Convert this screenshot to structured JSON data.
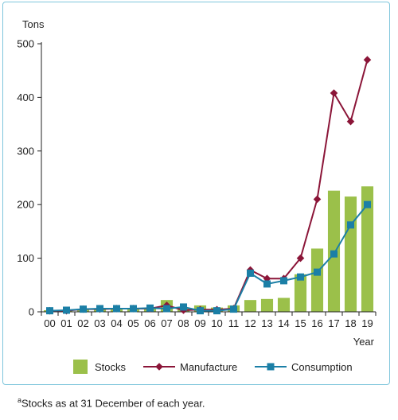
{
  "chart_data": {
    "type": "bar",
    "y_unit": "Tons",
    "xlabel": "Year",
    "ylim": [
      0,
      500
    ],
    "yticks": [
      0,
      100,
      200,
      300,
      400,
      500
    ],
    "categories": [
      "00",
      "01",
      "02",
      "03",
      "04",
      "05",
      "06",
      "07",
      "08",
      "09",
      "10",
      "11",
      "12",
      "13",
      "14",
      "15",
      "16",
      "17",
      "18",
      "19"
    ],
    "series": [
      {
        "name": "Stocks",
        "kind": "bar",
        "color": "#9bc04a",
        "values": [
          3,
          3,
          4,
          6,
          6,
          7,
          7,
          22,
          7,
          12,
          8,
          12,
          22,
          24,
          26,
          70,
          118,
          226,
          215,
          234
        ]
      },
      {
        "name": "Manufacture",
        "kind": "line",
        "marker": "diamond",
        "color": "#8b1538",
        "values": [
          2,
          2,
          5,
          5,
          6,
          6,
          6,
          12,
          3,
          4,
          4,
          6,
          78,
          62,
          62,
          100,
          210,
          408,
          355,
          470
        ]
      },
      {
        "name": "Consumption",
        "kind": "line",
        "marker": "square",
        "color": "#1b7fa6",
        "values": [
          2,
          3,
          5,
          6,
          6,
          6,
          7,
          6,
          9,
          2,
          2,
          5,
          72,
          52,
          58,
          65,
          74,
          108,
          162,
          200
        ]
      }
    ],
    "legend_position": "bottom",
    "grid": false
  },
  "footnote": {
    "marker": "a",
    "text": "Stocks as at 31 December of each year."
  }
}
